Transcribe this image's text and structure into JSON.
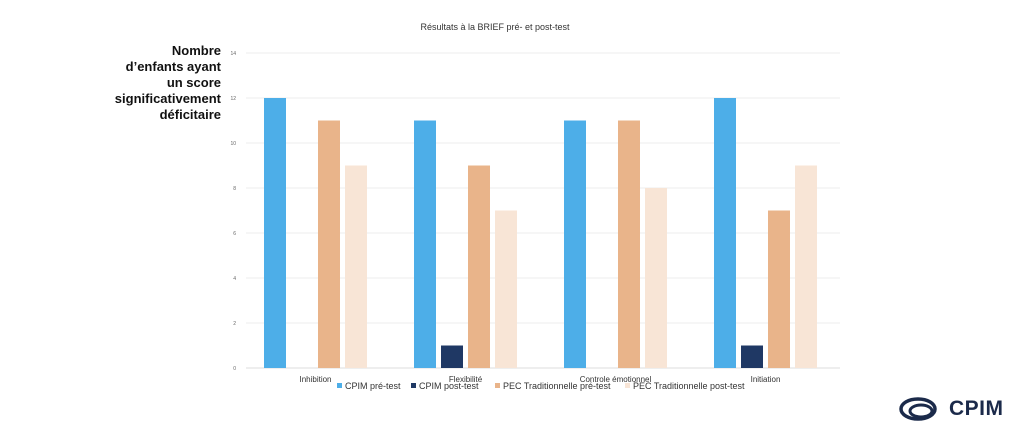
{
  "chart_data": {
    "type": "bar",
    "title": "Résultats à la BRIEF pré- et post-test",
    "ylabel_lines": [
      "Nombre",
      "d’enfants ayant",
      "un score",
      "significativement",
      "déficitaire"
    ],
    "categories": [
      "Inhibition",
      "Flexibilité",
      "Controle émotionnel",
      "Initiation"
    ],
    "ylim": [
      0,
      14
    ],
    "yticks": [
      0,
      2,
      4,
      6,
      8,
      10,
      12,
      14
    ],
    "grid": true,
    "legend_position": "bottom",
    "series": [
      {
        "name": "CPIM pré-test",
        "color": "#4DAEE8",
        "values": [
          12,
          11,
          11,
          12
        ]
      },
      {
        "name": "CPIM post-test",
        "color": "#1F3864",
        "values": [
          0,
          1,
          0,
          1
        ]
      },
      {
        "name": "PEC Traditionnelle pré-test",
        "color": "#E9B48A",
        "values": [
          11,
          9,
          11,
          7
        ]
      },
      {
        "name": "PEC Traditionnelle post-test",
        "color": "#F8E5D6",
        "values": [
          9,
          7,
          8,
          9
        ]
      }
    ]
  },
  "logo": {
    "text": "CPIM",
    "color": "#1b2a4a"
  }
}
